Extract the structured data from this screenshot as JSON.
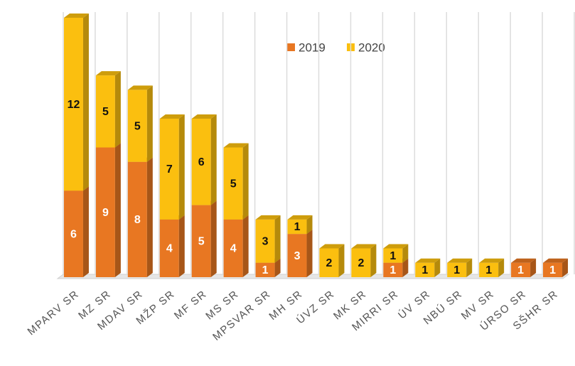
{
  "chart_data": {
    "type": "bar",
    "stacked": true,
    "categories": [
      "MPARV SR",
      "MZ SR",
      "MDAV SR",
      "MŽP SR",
      "MF SR",
      "MS SR",
      "MPSVAR SR",
      "MH SR",
      "ÚVZ SR",
      "MK SR",
      "MIRRI SR",
      "ÚV SR",
      "NBÚ SR",
      "MV SR",
      "ÚRSO SR",
      "SŠHR SR"
    ],
    "series": [
      {
        "name": "2019",
        "color": "#e87722",
        "values": [
          6,
          9,
          8,
          4,
          5,
          4,
          1,
          3,
          0,
          0,
          1,
          0,
          0,
          0,
          1,
          1
        ]
      },
      {
        "name": "2020",
        "color": "#fbbf0f",
        "values": [
          12,
          5,
          5,
          7,
          6,
          5,
          3,
          1,
          2,
          2,
          1,
          1,
          1,
          1,
          0,
          0
        ]
      }
    ],
    "ylim": [
      0,
      18
    ],
    "grid": true
  }
}
